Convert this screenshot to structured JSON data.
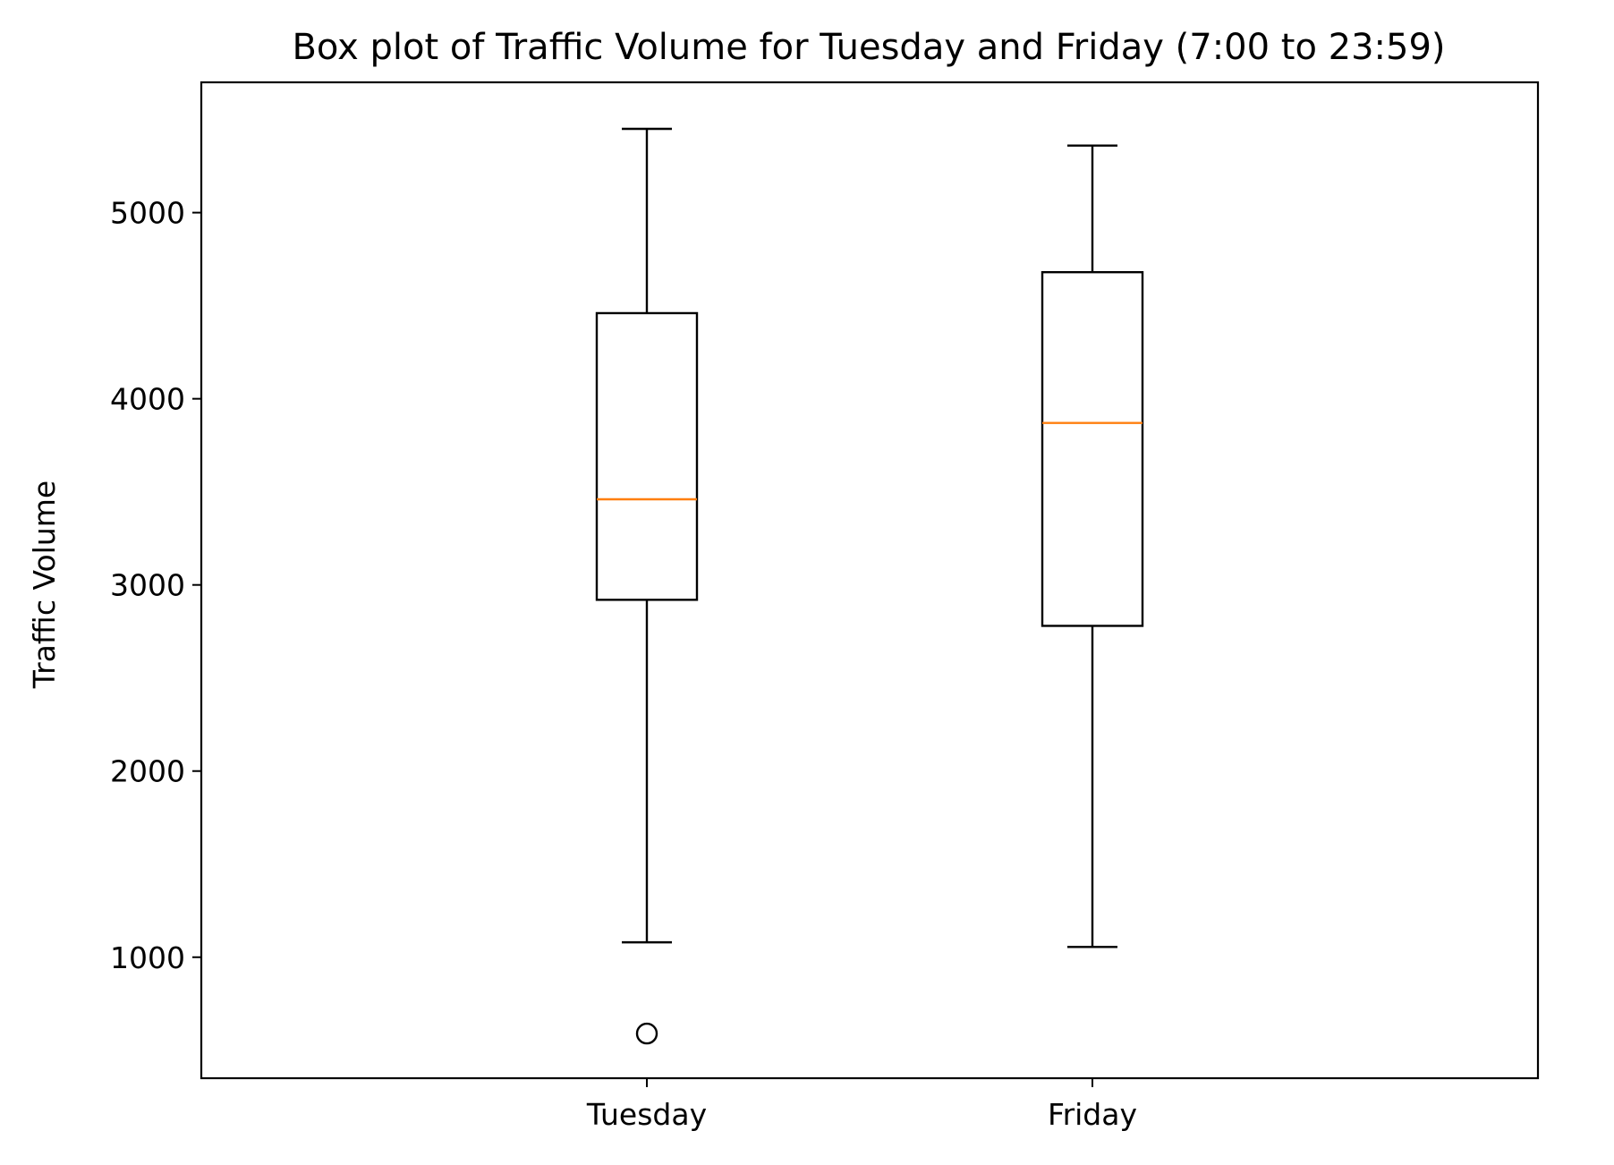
{
  "chart_data": {
    "type": "box",
    "title": "Box plot of Traffic Volume for Tuesday and Friday (7:00 to 23:59)",
    "xlabel": "",
    "ylabel": "Traffic Volume",
    "ylim": [
      350,
      5700
    ],
    "yticks": [
      1000,
      2000,
      3000,
      4000,
      5000
    ],
    "grid": false,
    "categories": [
      "Tuesday",
      "Friday"
    ],
    "boxes": [
      {
        "category": "Tuesday",
        "whisker_low": 1080,
        "q1": 2920,
        "median": 3460,
        "q3": 4460,
        "whisker_high": 5450,
        "outliers": [
          590
        ]
      },
      {
        "category": "Friday",
        "whisker_low": 1055,
        "q1": 2780,
        "median": 3870,
        "q3": 4680,
        "whisker_high": 5360,
        "outliers": []
      }
    ]
  },
  "colors": {
    "box": "#000000",
    "median": "#ff7f0e",
    "background": "#ffffff"
  }
}
